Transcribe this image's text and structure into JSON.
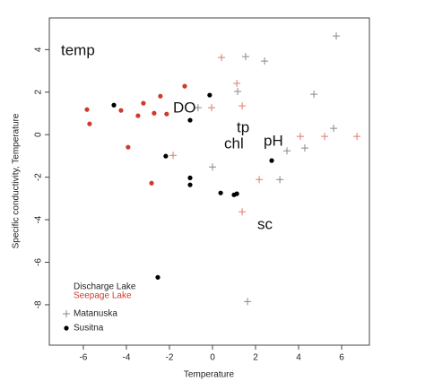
{
  "chart_data": {
    "type": "scatter",
    "xlabel": "Temperature",
    "ylabel": "Specific conductivity, Temperature",
    "xlim": [
      -7.58,
      7.29
    ],
    "ylim": [
      -9.9,
      5.49
    ],
    "xticks": [
      -6,
      -4,
      -2,
      0,
      2,
      4,
      6
    ],
    "yticks": [
      4,
      2,
      0,
      -2,
      -4,
      -6,
      -8
    ],
    "series": [
      {
        "marker": "dot",
        "color": "#d03a2a",
        "x": [
          -5.83,
          -5.71,
          -4.25,
          -3.46,
          -3.21,
          -2.71,
          -2.42,
          -2.13,
          -1.29,
          -3.92,
          -2.83
        ],
        "y": [
          1.18,
          0.51,
          1.14,
          0.89,
          1.48,
          1.01,
          1.81,
          0.97,
          2.28,
          -0.59,
          -2.28
        ]
      },
      {
        "marker": "dot",
        "color": "#000000",
        "x": [
          -4.58,
          -2.17,
          -1.04,
          -1.04,
          -1.04,
          -0.13,
          0.38,
          1.0,
          1.13,
          2.75,
          -2.54
        ],
        "y": [
          1.39,
          -1.01,
          -2.03,
          -2.36,
          0.68,
          1.86,
          -2.74,
          -2.83,
          -2.78,
          -1.22,
          -6.71
        ]
      },
      {
        "marker": "plus",
        "color": "#e07a6a",
        "x": [
          -1.83,
          0.42,
          -0.04,
          1.13,
          1.38,
          2.17,
          4.08,
          5.21,
          6.71,
          1.38
        ],
        "y": [
          -0.97,
          3.63,
          1.27,
          2.41,
          1.35,
          -2.11,
          -0.08,
          -0.08,
          -0.08,
          -3.63
        ]
      },
      {
        "marker": "plus",
        "color": "#888888",
        "x": [
          1.54,
          2.42,
          5.75,
          1.17,
          4.71,
          -0.67,
          0,
          3.13,
          3.46,
          4.29,
          5.63,
          1.63
        ],
        "y": [
          3.67,
          3.46,
          4.64,
          2.03,
          1.9,
          1.27,
          -1.52,
          -2.11,
          -0.76,
          -0.63,
          0.3,
          -7.85
        ]
      }
    ],
    "annotations": [
      "temp",
      "DO",
      "tp",
      "chl",
      "pH",
      "sc"
    ],
    "legend": [
      {
        "label": "Discharge Lake",
        "color": "#222222"
      },
      {
        "label": "Seepage Lake",
        "color": "#d03a2a"
      },
      {
        "label": "Matanuska",
        "marker": "plus",
        "color": "#888888"
      },
      {
        "label": "Susitna",
        "marker": "dot",
        "color": "#000000"
      }
    ]
  }
}
